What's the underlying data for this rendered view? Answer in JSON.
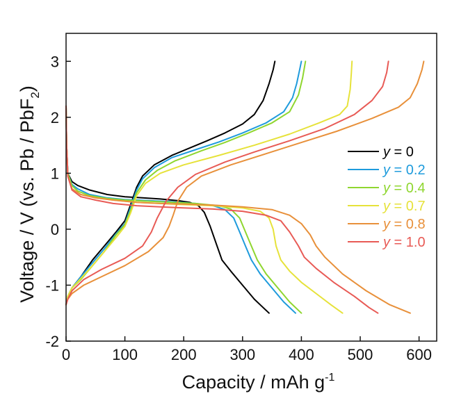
{
  "chart_data": {
    "type": "line",
    "xlabel": "Capacity / mAh g",
    "xlabel_sup": "-1",
    "ylabel": "Voltage / V (vs. Pb / PbF",
    "ylabel_sub": "2",
    "ylabel_end": ")",
    "xlim": [
      0,
      630
    ],
    "ylim": [
      -2,
      3.5
    ],
    "xticks": [
      0,
      100,
      200,
      300,
      400,
      500,
      600
    ],
    "yticks": [
      -2,
      -1,
      0,
      1,
      2,
      3
    ],
    "xtick_labels": [
      "0",
      "100",
      "200",
      "300",
      "400",
      "500",
      "600"
    ],
    "ytick_labels": [
      "-2",
      "-1",
      "0",
      "1",
      "2",
      "3"
    ],
    "legend_position": "right",
    "series": [
      {
        "name": "y = 0",
        "legend_var": "y",
        "legend_val": " = 0",
        "color": "#000000",
        "discharge": [
          [
            0,
            2.2
          ],
          [
            1,
            1.5
          ],
          [
            3,
            1.0
          ],
          [
            10,
            0.85
          ],
          [
            20,
            0.78
          ],
          [
            40,
            0.7
          ],
          [
            70,
            0.62
          ],
          [
            100,
            0.58
          ],
          [
            130,
            0.56
          ],
          [
            160,
            0.54
          ],
          [
            190,
            0.51
          ],
          [
            210,
            0.48
          ],
          [
            225,
            0.42
          ],
          [
            235,
            0.3
          ],
          [
            245,
            0.05
          ],
          [
            255,
            -0.25
          ],
          [
            265,
            -0.55
          ],
          [
            280,
            -0.75
          ],
          [
            300,
            -1.0
          ],
          [
            320,
            -1.25
          ],
          [
            335,
            -1.4
          ],
          [
            345,
            -1.5
          ]
        ],
        "charge": [
          [
            0,
            -1.35
          ],
          [
            3,
            -1.2
          ],
          [
            10,
            -1.05
          ],
          [
            25,
            -0.85
          ],
          [
            45,
            -0.55
          ],
          [
            65,
            -0.3
          ],
          [
            85,
            -0.05
          ],
          [
            100,
            0.15
          ],
          [
            110,
            0.45
          ],
          [
            120,
            0.75
          ],
          [
            130,
            0.95
          ],
          [
            150,
            1.15
          ],
          [
            180,
            1.32
          ],
          [
            210,
            1.45
          ],
          [
            240,
            1.58
          ],
          [
            270,
            1.72
          ],
          [
            300,
            1.88
          ],
          [
            320,
            2.05
          ],
          [
            335,
            2.3
          ],
          [
            345,
            2.6
          ],
          [
            352,
            2.85
          ],
          [
            355,
            3.0
          ]
        ]
      },
      {
        "name": "y = 0.2",
        "legend_var": "y",
        "legend_val": " = 0.2",
        "color": "#1e9bdc",
        "discharge": [
          [
            0,
            2.2
          ],
          [
            1,
            1.5
          ],
          [
            3,
            1.0
          ],
          [
            10,
            0.8
          ],
          [
            20,
            0.72
          ],
          [
            40,
            0.62
          ],
          [
            70,
            0.56
          ],
          [
            100,
            0.53
          ],
          [
            140,
            0.51
          ],
          [
            180,
            0.49
          ],
          [
            220,
            0.46
          ],
          [
            250,
            0.42
          ],
          [
            270,
            0.35
          ],
          [
            285,
            0.2
          ],
          [
            295,
            -0.05
          ],
          [
            305,
            -0.3
          ],
          [
            315,
            -0.55
          ],
          [
            330,
            -0.8
          ],
          [
            350,
            -1.05
          ],
          [
            370,
            -1.3
          ],
          [
            390,
            -1.5
          ]
        ],
        "charge": [
          [
            0,
            -1.35
          ],
          [
            3,
            -1.2
          ],
          [
            10,
            -1.05
          ],
          [
            25,
            -0.85
          ],
          [
            45,
            -0.6
          ],
          [
            65,
            -0.35
          ],
          [
            85,
            -0.08
          ],
          [
            100,
            0.1
          ],
          [
            110,
            0.4
          ],
          [
            120,
            0.7
          ],
          [
            130,
            0.9
          ],
          [
            150,
            1.1
          ],
          [
            180,
            1.28
          ],
          [
            220,
            1.42
          ],
          [
            260,
            1.56
          ],
          [
            300,
            1.72
          ],
          [
            340,
            1.9
          ],
          [
            370,
            2.1
          ],
          [
            385,
            2.35
          ],
          [
            392,
            2.6
          ],
          [
            397,
            2.85
          ],
          [
            400,
            3.0
          ]
        ]
      },
      {
        "name": "y = 0.4",
        "legend_var": "y",
        "legend_val": " = 0.4",
        "color": "#8fd62f",
        "discharge": [
          [
            0,
            2.2
          ],
          [
            1,
            1.5
          ],
          [
            3,
            1.0
          ],
          [
            10,
            0.78
          ],
          [
            20,
            0.68
          ],
          [
            40,
            0.6
          ],
          [
            70,
            0.55
          ],
          [
            100,
            0.52
          ],
          [
            140,
            0.5
          ],
          [
            180,
            0.48
          ],
          [
            220,
            0.46
          ],
          [
            260,
            0.42
          ],
          [
            280,
            0.36
          ],
          [
            295,
            0.2
          ],
          [
            305,
            -0.05
          ],
          [
            315,
            -0.3
          ],
          [
            325,
            -0.55
          ],
          [
            340,
            -0.8
          ],
          [
            360,
            -1.05
          ],
          [
            380,
            -1.3
          ],
          [
            400,
            -1.5
          ]
        ],
        "charge": [
          [
            0,
            -1.35
          ],
          [
            3,
            -1.2
          ],
          [
            10,
            -1.05
          ],
          [
            25,
            -0.9
          ],
          [
            45,
            -0.65
          ],
          [
            65,
            -0.4
          ],
          [
            85,
            -0.1
          ],
          [
            100,
            0.08
          ],
          [
            110,
            0.35
          ],
          [
            120,
            0.65
          ],
          [
            135,
            0.88
          ],
          [
            155,
            1.05
          ],
          [
            185,
            1.22
          ],
          [
            230,
            1.4
          ],
          [
            270,
            1.55
          ],
          [
            310,
            1.72
          ],
          [
            350,
            1.9
          ],
          [
            380,
            2.1
          ],
          [
            395,
            2.4
          ],
          [
            402,
            2.7
          ],
          [
            407,
            3.0
          ]
        ]
      },
      {
        "name": "y = 0.7",
        "legend_var": "y",
        "legend_val": " = 0.7",
        "color": "#e6e23a",
        "discharge": [
          [
            0,
            2.2
          ],
          [
            1,
            1.5
          ],
          [
            3,
            0.95
          ],
          [
            10,
            0.72
          ],
          [
            25,
            0.62
          ],
          [
            50,
            0.56
          ],
          [
            80,
            0.52
          ],
          [
            120,
            0.48
          ],
          [
            160,
            0.46
          ],
          [
            200,
            0.44
          ],
          [
            250,
            0.42
          ],
          [
            300,
            0.38
          ],
          [
            330,
            0.32
          ],
          [
            345,
            0.2
          ],
          [
            352,
            0.0
          ],
          [
            357,
            -0.3
          ],
          [
            365,
            -0.55
          ],
          [
            380,
            -0.75
          ],
          [
            400,
            -0.95
          ],
          [
            425,
            -1.15
          ],
          [
            450,
            -1.35
          ],
          [
            470,
            -1.5
          ]
        ],
        "charge": [
          [
            0,
            -1.35
          ],
          [
            3,
            -1.2
          ],
          [
            10,
            -1.05
          ],
          [
            25,
            -0.88
          ],
          [
            45,
            -0.65
          ],
          [
            65,
            -0.4
          ],
          [
            85,
            -0.15
          ],
          [
            100,
            0.05
          ],
          [
            110,
            0.3
          ],
          [
            120,
            0.6
          ],
          [
            135,
            0.82
          ],
          [
            160,
            1.0
          ],
          [
            200,
            1.15
          ],
          [
            260,
            1.32
          ],
          [
            320,
            1.5
          ],
          [
            380,
            1.7
          ],
          [
            430,
            1.9
          ],
          [
            465,
            2.05
          ],
          [
            478,
            2.2
          ],
          [
            483,
            2.5
          ],
          [
            485,
            2.8
          ],
          [
            486,
            3.0
          ]
        ]
      },
      {
        "name": "y = 0.8",
        "legend_var": "y",
        "legend_val": " = 0.8",
        "color": "#e8903a",
        "discharge": [
          [
            0,
            2.2
          ],
          [
            1,
            1.5
          ],
          [
            3,
            0.95
          ],
          [
            10,
            0.72
          ],
          [
            25,
            0.62
          ],
          [
            50,
            0.56
          ],
          [
            80,
            0.52
          ],
          [
            120,
            0.48
          ],
          [
            160,
            0.46
          ],
          [
            200,
            0.45
          ],
          [
            250,
            0.43
          ],
          [
            300,
            0.4
          ],
          [
            350,
            0.35
          ],
          [
            380,
            0.25
          ],
          [
            400,
            0.1
          ],
          [
            415,
            -0.1
          ],
          [
            425,
            -0.3
          ],
          [
            440,
            -0.5
          ],
          [
            470,
            -0.8
          ],
          [
            510,
            -1.1
          ],
          [
            550,
            -1.35
          ],
          [
            585,
            -1.5
          ]
        ],
        "charge": [
          [
            0,
            -1.35
          ],
          [
            3,
            -1.25
          ],
          [
            10,
            -1.15
          ],
          [
            30,
            -1.0
          ],
          [
            60,
            -0.85
          ],
          [
            100,
            -0.65
          ],
          [
            140,
            -0.4
          ],
          [
            165,
            -0.15
          ],
          [
            175,
            0.05
          ],
          [
            182,
            0.25
          ],
          [
            190,
            0.5
          ],
          [
            205,
            0.75
          ],
          [
            230,
            0.95
          ],
          [
            280,
            1.15
          ],
          [
            340,
            1.35
          ],
          [
            400,
            1.55
          ],
          [
            460,
            1.75
          ],
          [
            520,
            1.98
          ],
          [
            565,
            2.18
          ],
          [
            585,
            2.35
          ],
          [
            597,
            2.6
          ],
          [
            605,
            2.85
          ],
          [
            608,
            3.0
          ]
        ]
      },
      {
        "name": "y = 1.0",
        "legend_var": "y",
        "legend_val": " = 1.0",
        "color": "#e85a55",
        "discharge": [
          [
            0,
            2.2
          ],
          [
            1,
            1.5
          ],
          [
            3,
            0.95
          ],
          [
            10,
            0.7
          ],
          [
            25,
            0.58
          ],
          [
            50,
            0.52
          ],
          [
            80,
            0.46
          ],
          [
            120,
            0.42
          ],
          [
            160,
            0.4
          ],
          [
            200,
            0.38
          ],
          [
            250,
            0.36
          ],
          [
            300,
            0.32
          ],
          [
            340,
            0.25
          ],
          [
            365,
            0.15
          ],
          [
            380,
            -0.05
          ],
          [
            395,
            -0.3
          ],
          [
            405,
            -0.5
          ],
          [
            425,
            -0.7
          ],
          [
            455,
            -0.95
          ],
          [
            490,
            -1.2
          ],
          [
            515,
            -1.4
          ],
          [
            530,
            -1.5
          ]
        ],
        "charge": [
          [
            0,
            -1.35
          ],
          [
            3,
            -1.25
          ],
          [
            10,
            -1.1
          ],
          [
            30,
            -0.9
          ],
          [
            60,
            -0.72
          ],
          [
            100,
            -0.52
          ],
          [
            130,
            -0.3
          ],
          [
            145,
            -0.05
          ],
          [
            155,
            0.2
          ],
          [
            170,
            0.5
          ],
          [
            190,
            0.75
          ],
          [
            220,
            0.98
          ],
          [
            270,
            1.2
          ],
          [
            320,
            1.38
          ],
          [
            380,
            1.58
          ],
          [
            440,
            1.8
          ],
          [
            490,
            2.05
          ],
          [
            520,
            2.3
          ],
          [
            538,
            2.55
          ],
          [
            545,
            2.8
          ],
          [
            548,
            3.0
          ]
        ]
      }
    ]
  }
}
